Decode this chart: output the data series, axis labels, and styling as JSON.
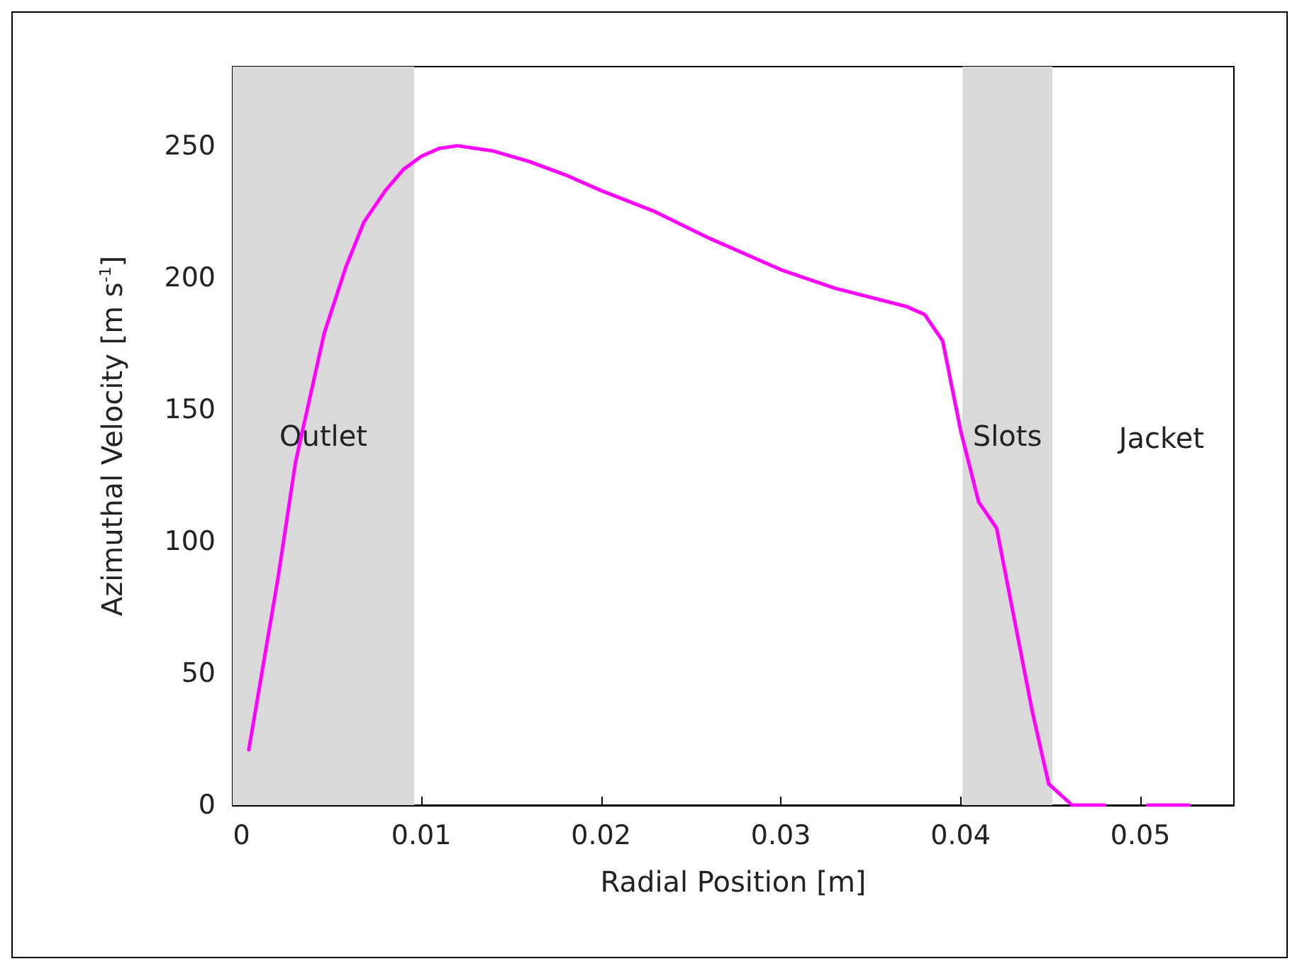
{
  "chart_data": {
    "type": "line",
    "xlabel": "Radial Position [m]",
    "ylabel": "Azimuthal Velocity [m s$^{-1}$]",
    "x": [
      0.0004,
      0.002,
      0.003,
      0.0046,
      0.0058,
      0.0068,
      0.008,
      0.009,
      0.01,
      0.011,
      0.012,
      0.014,
      0.016,
      0.018,
      0.02,
      0.023,
      0.026,
      0.03,
      0.033,
      0.037,
      0.038,
      0.039,
      0.04,
      0.041,
      0.042,
      0.043,
      0.044,
      0.0449,
      0.0462,
      0.048,
      0.049,
      0.0504,
      0.0527
    ],
    "series": [
      {
        "color": "#ff00ff",
        "values": [
          21,
          85,
          130,
          179,
          204,
          221,
          233,
          241,
          246,
          249,
          250,
          248,
          244,
          239,
          233,
          225,
          215,
          203,
          196,
          189,
          186,
          176,
          142,
          115,
          105,
          70,
          35,
          8,
          0,
          0,
          null,
          0,
          0
        ]
      }
    ],
    "xlim": [
      -0.0005,
      0.0552
    ],
    "xticks": [
      0,
      0.01,
      0.02,
      0.03,
      0.04,
      0.05
    ],
    "ylim": [
      0,
      280
    ],
    "yticks": [
      0,
      50,
      100,
      150,
      200,
      250
    ],
    "bands": [
      {
        "axis": "x",
        "from": -0.0005,
        "to": 0.0096,
        "label": "Outlet",
        "color": "#d9d9d9"
      },
      {
        "axis": "x",
        "from": 0.0401,
        "to": 0.0451,
        "label": "Slots",
        "color": "#d9d9d9"
      }
    ],
    "annotations": [
      "Jacket"
    ],
    "grid": false,
    "marker": "none",
    "line_style": "solid"
  }
}
